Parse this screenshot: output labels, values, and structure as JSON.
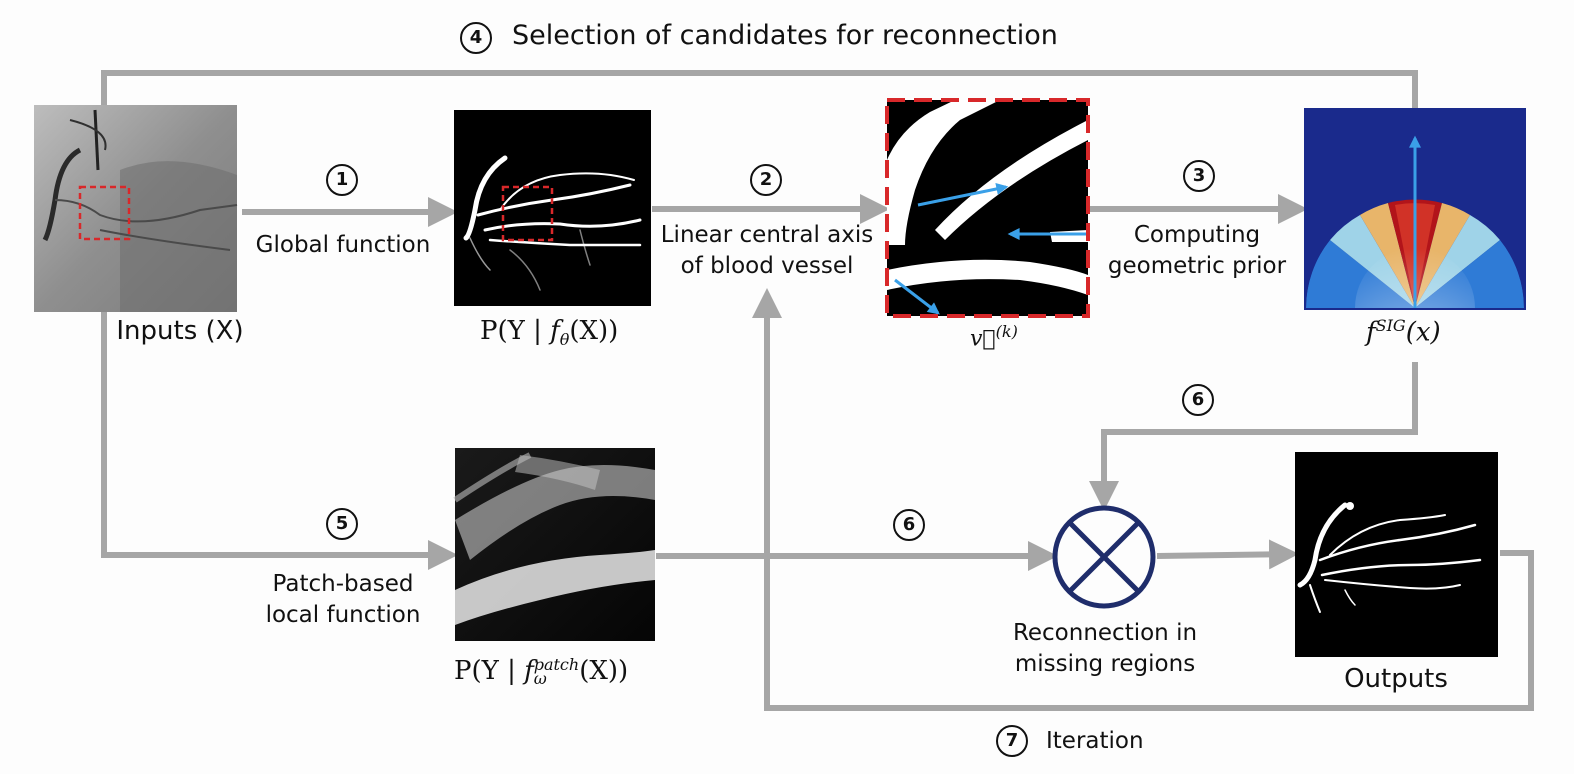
{
  "steps": [
    {
      "number": "4",
      "label": "Selection of candidates for reconnection"
    },
    {
      "number": "1",
      "label": "Global function"
    },
    {
      "number": "2",
      "label": "Linear central axis\nof blood vessel"
    },
    {
      "number": "3",
      "label": "Computing\ngeometric prior"
    },
    {
      "number": "6",
      "label": ""
    },
    {
      "number": "5",
      "label": "Patch-based\nlocal function"
    },
    {
      "number": "6",
      "label": ""
    },
    {
      "number": "7",
      "label": "Iteration"
    }
  ],
  "images": {
    "input": {
      "caption": "Inputs (X)"
    },
    "global_prob": {
      "caption_parts": [
        "P(Y | ",
        "f",
        "θ",
        "(X))"
      ]
    },
    "vector": {
      "caption_parts": [
        "v⃗",
        "(k)"
      ]
    },
    "prior": {
      "caption_parts": [
        "f",
        "SIG",
        "(x)"
      ]
    },
    "patch_prob": {
      "caption_parts": [
        "P(Y | ",
        "f",
        "patch",
        "ω",
        "(X))"
      ]
    },
    "output": {
      "caption": "Outputs"
    }
  },
  "operator": {
    "caption": "Reconnection in\nmissing regions"
  },
  "colors": {
    "arrow": "#a6a6a6",
    "operator": "#1f2d6b",
    "highlight_box": "#d8282a",
    "vector_arrow": "#3aa0e8",
    "prior_background": "#1a2a8c"
  }
}
